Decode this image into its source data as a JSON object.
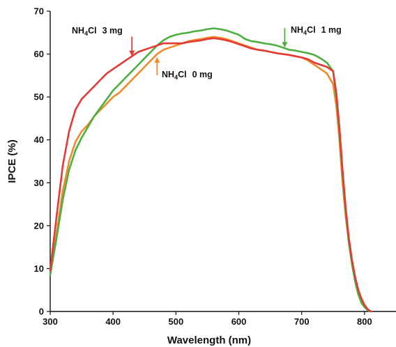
{
  "chart_data": {
    "type": "line",
    "xlabel": "Wavelength (nm)",
    "ylabel": "IPCE (%)",
    "xlim": [
      300,
      850
    ],
    "ylim": [
      0,
      70
    ],
    "xticks": [
      300,
      400,
      500,
      600,
      700,
      800
    ],
    "yticks": [
      0,
      10,
      20,
      30,
      40,
      50,
      60,
      70
    ],
    "grid": false,
    "series": [
      {
        "key": "nh4cl_0mg",
        "color": "#f08a2b",
        "x": [
          300,
          310,
          320,
          330,
          340,
          350,
          360,
          370,
          380,
          390,
          400,
          410,
          420,
          430,
          440,
          450,
          460,
          470,
          480,
          490,
          500,
          510,
          520,
          530,
          540,
          550,
          560,
          570,
          580,
          590,
          600,
          610,
          620,
          630,
          640,
          650,
          660,
          670,
          680,
          690,
          700,
          710,
          720,
          730,
          740,
          750,
          755,
          760,
          765,
          770,
          775,
          780,
          785,
          790,
          795,
          800,
          805,
          810
        ],
        "y": [
          8.5,
          18,
          28,
          35,
          39.5,
          42,
          43.5,
          45.5,
          47,
          48.5,
          50,
          51,
          52.5,
          54,
          55.5,
          57,
          58.5,
          60,
          61,
          61.5,
          62,
          62.5,
          63,
          63.3,
          63.5,
          63.8,
          64,
          63.8,
          63.5,
          63,
          62.5,
          62,
          61.5,
          61,
          60.8,
          60.5,
          60.2,
          60,
          59.8,
          59.5,
          59.2,
          58.5,
          57.5,
          56.5,
          55.5,
          53,
          48,
          40,
          30,
          22,
          16,
          11,
          7,
          4,
          2,
          1,
          0.3,
          0
        ]
      },
      {
        "key": "nh4cl_1mg",
        "color": "#4caf3f",
        "x": [
          300,
          310,
          320,
          330,
          340,
          350,
          360,
          370,
          380,
          390,
          400,
          410,
          420,
          430,
          440,
          450,
          460,
          470,
          480,
          490,
          500,
          510,
          520,
          530,
          540,
          550,
          560,
          570,
          580,
          590,
          600,
          610,
          620,
          630,
          640,
          650,
          660,
          670,
          680,
          690,
          700,
          710,
          720,
          730,
          740,
          750,
          755,
          760,
          765,
          770,
          775,
          780,
          785,
          790,
          795,
          800,
          805,
          810
        ],
        "y": [
          8.5,
          17,
          26,
          33,
          37.5,
          40.5,
          43,
          45.5,
          47.5,
          49.5,
          51.5,
          53,
          54.5,
          56,
          57.5,
          59,
          60.5,
          62,
          63.2,
          64,
          64.5,
          64.8,
          65,
          65.3,
          65.5,
          65.8,
          66,
          65.8,
          65.5,
          65,
          64.5,
          63.5,
          63,
          62.8,
          62.5,
          62.3,
          62,
          61.5,
          61,
          60.8,
          60.5,
          60.2,
          59.8,
          59,
          58,
          56,
          50,
          42,
          32,
          23,
          16,
          11,
          7,
          4,
          2,
          1,
          0.3,
          0
        ]
      },
      {
        "key": "nh4cl_3mg",
        "color": "#e53935",
        "x": [
          300,
          310,
          320,
          330,
          340,
          350,
          360,
          370,
          380,
          390,
          400,
          410,
          420,
          430,
          440,
          450,
          460,
          470,
          480,
          490,
          500,
          510,
          520,
          530,
          540,
          550,
          560,
          570,
          580,
          590,
          600,
          610,
          620,
          630,
          640,
          650,
          660,
          670,
          680,
          690,
          700,
          710,
          720,
          730,
          740,
          750,
          755,
          760,
          765,
          770,
          775,
          780,
          785,
          790,
          795,
          800,
          805,
          810
        ],
        "y": [
          9.5,
          22,
          34,
          42,
          47,
          49.5,
          51,
          52.5,
          54,
          55.5,
          56.5,
          57.5,
          58.5,
          59.5,
          60.5,
          61,
          61.5,
          62,
          62.5,
          62.5,
          62.5,
          62.5,
          62.8,
          63,
          63.2,
          63.5,
          63.7,
          63.5,
          63.2,
          62.8,
          62.3,
          61.8,
          61.3,
          61,
          60.8,
          60.5,
          60.2,
          60,
          59.8,
          59.5,
          59.2,
          58.8,
          58,
          57.5,
          57,
          56,
          51,
          43,
          33,
          24,
          17,
          12,
          8,
          5,
          3,
          1.5,
          0.5,
          0
        ]
      }
    ],
    "annotations": [
      {
        "key": "label_3mg",
        "formula_main": "NH",
        "formula_sub": "4",
        "formula_rest": "Cl",
        "amount": "3 mg",
        "color": "#e53935",
        "x": 430,
        "y": 59.5,
        "arrow": "down"
      },
      {
        "key": "label_1mg",
        "formula_main": "NH",
        "formula_sub": "4",
        "formula_rest": "Cl",
        "amount": "1 mg",
        "color": "#4caf3f",
        "x": 673,
        "y": 61.5,
        "arrow": "down"
      },
      {
        "key": "label_0mg",
        "formula_main": "NH",
        "formula_sub": "4",
        "formula_rest": "Cl",
        "amount": "0 mg",
        "color": "#f08a2b",
        "x": 470,
        "y": 59.3,
        "arrow": "up"
      }
    ]
  }
}
